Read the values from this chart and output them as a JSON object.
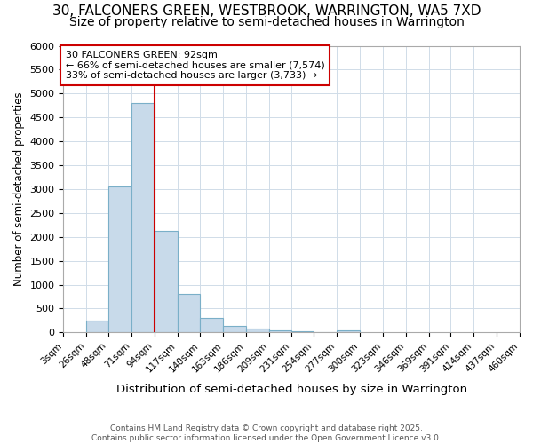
{
  "title1": "30, FALCONERS GREEN, WESTBROOK, WARRINGTON, WA5 7XD",
  "title2": "Size of property relative to semi-detached houses in Warrington",
  "xlabel": "Distribution of semi-detached houses by size in Warrington",
  "ylabel": "Number of semi-detached properties",
  "footer1": "Contains HM Land Registry data © Crown copyright and database right 2025.",
  "footer2": "Contains public sector information licensed under the Open Government Licence v3.0.",
  "property_label": "30 FALCONERS GREEN: 92sqm",
  "smaller_label": "← 66% of semi-detached houses are smaller (7,574)",
  "larger_label": "33% of semi-detached houses are larger (3,733) →",
  "property_size": 92,
  "bin_edges": [
    3,
    26,
    48,
    71,
    94,
    117,
    140,
    163,
    186,
    209,
    231,
    254,
    277,
    300,
    323,
    346,
    369,
    391,
    414,
    437,
    460
  ],
  "bar_heights": [
    0,
    255,
    3060,
    4800,
    2130,
    800,
    300,
    140,
    75,
    50,
    20,
    15,
    50,
    0,
    0,
    0,
    0,
    0,
    0,
    0
  ],
  "bar_color": "#c8daea",
  "bar_edge_color": "#7aafc8",
  "vline_color": "#cc0000",
  "vline_x": 94,
  "annotation_box_color": "#cc0000",
  "ylim": [
    0,
    6000
  ],
  "yticks": [
    0,
    500,
    1000,
    1500,
    2000,
    2500,
    3000,
    3500,
    4000,
    4500,
    5000,
    5500,
    6000
  ],
  "grid_color": "#d0dce8",
  "background_color": "#ffffff",
  "title_fontsize": 11,
  "subtitle_fontsize": 10
}
